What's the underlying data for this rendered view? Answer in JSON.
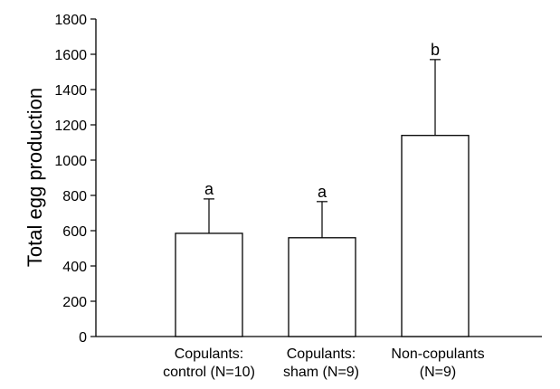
{
  "chart_data": {
    "type": "bar",
    "ylabel": "Total egg production",
    "xlabel": "",
    "ylim": [
      0,
      1800
    ],
    "yticks": [
      0,
      200,
      400,
      600,
      800,
      1000,
      1200,
      1400,
      1600,
      1800
    ],
    "categories": [
      {
        "line1": "Copulants:",
        "line2": "control (N=10)"
      },
      {
        "line1": "Copulants:",
        "line2": "sham (N=9)"
      },
      {
        "line1": "Non-copulants",
        "line2": "(N=9)"
      }
    ],
    "values": [
      585,
      560,
      1140
    ],
    "error_upper": [
      780,
      765,
      1570
    ],
    "significance_letters": [
      "a",
      "a",
      "b"
    ],
    "grid": false,
    "bar_fill": "#ffffff",
    "stroke_color": "#000000"
  }
}
